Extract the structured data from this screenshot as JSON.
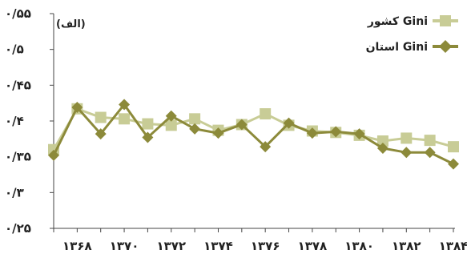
{
  "chart_data": {
    "type": "line",
    "unit_label": "(الف)",
    "ylim": [
      0.25,
      0.55
    ],
    "y_ticks": [
      0.25,
      0.3,
      0.35,
      0.4,
      0.45,
      0.5,
      0.55
    ],
    "y_tick_labels": [
      "۰/۲۵",
      "۰/۳",
      "۰/۳۵",
      "۰/۴",
      "۰/۴۵",
      "۰/۵",
      "۰/۵۵"
    ],
    "x": [
      1367,
      1368,
      1369,
      1370,
      1371,
      1372,
      1373,
      1374,
      1375,
      1376,
      1377,
      1378,
      1379,
      1380,
      1381,
      1382,
      1383,
      1384
    ],
    "x_tick_labels": [
      {
        "x": 1368,
        "label": "۱۳۶۸"
      },
      {
        "x": 1370,
        "label": "۱۳۷۰"
      },
      {
        "x": 1372,
        "label": "۱۳۷۲"
      },
      {
        "x": 1374,
        "label": "۱۳۷۴"
      },
      {
        "x": 1376,
        "label": "۱۳۷۶"
      },
      {
        "x": 1378,
        "label": "۱۳۷۸"
      },
      {
        "x": 1380,
        "label": "۱۳۸۰"
      },
      {
        "x": 1382,
        "label": "۱۳۸۲"
      },
      {
        "x": 1384,
        "label": "۱۳۸۴"
      }
    ],
    "series": [
      {
        "name": "کشور Gini",
        "marker": "square",
        "color": "#c8cc96",
        "values": [
          0.36,
          0.417,
          0.405,
          0.403,
          0.396,
          0.394,
          0.403,
          0.387,
          0.395,
          0.41,
          0.394,
          0.386,
          0.384,
          0.38,
          0.372,
          0.376,
          0.373,
          0.364
        ]
      },
      {
        "name": "استان Gini",
        "marker": "diamond",
        "color": "#8c8a3a",
        "values": [
          0.352,
          0.419,
          0.382,
          0.423,
          0.377,
          0.407,
          0.389,
          0.383,
          0.395,
          0.364,
          0.397,
          0.383,
          0.385,
          0.382,
          0.362,
          0.356,
          0.356,
          0.34
        ]
      }
    ],
    "legend_position": "top-right",
    "grid": false
  }
}
